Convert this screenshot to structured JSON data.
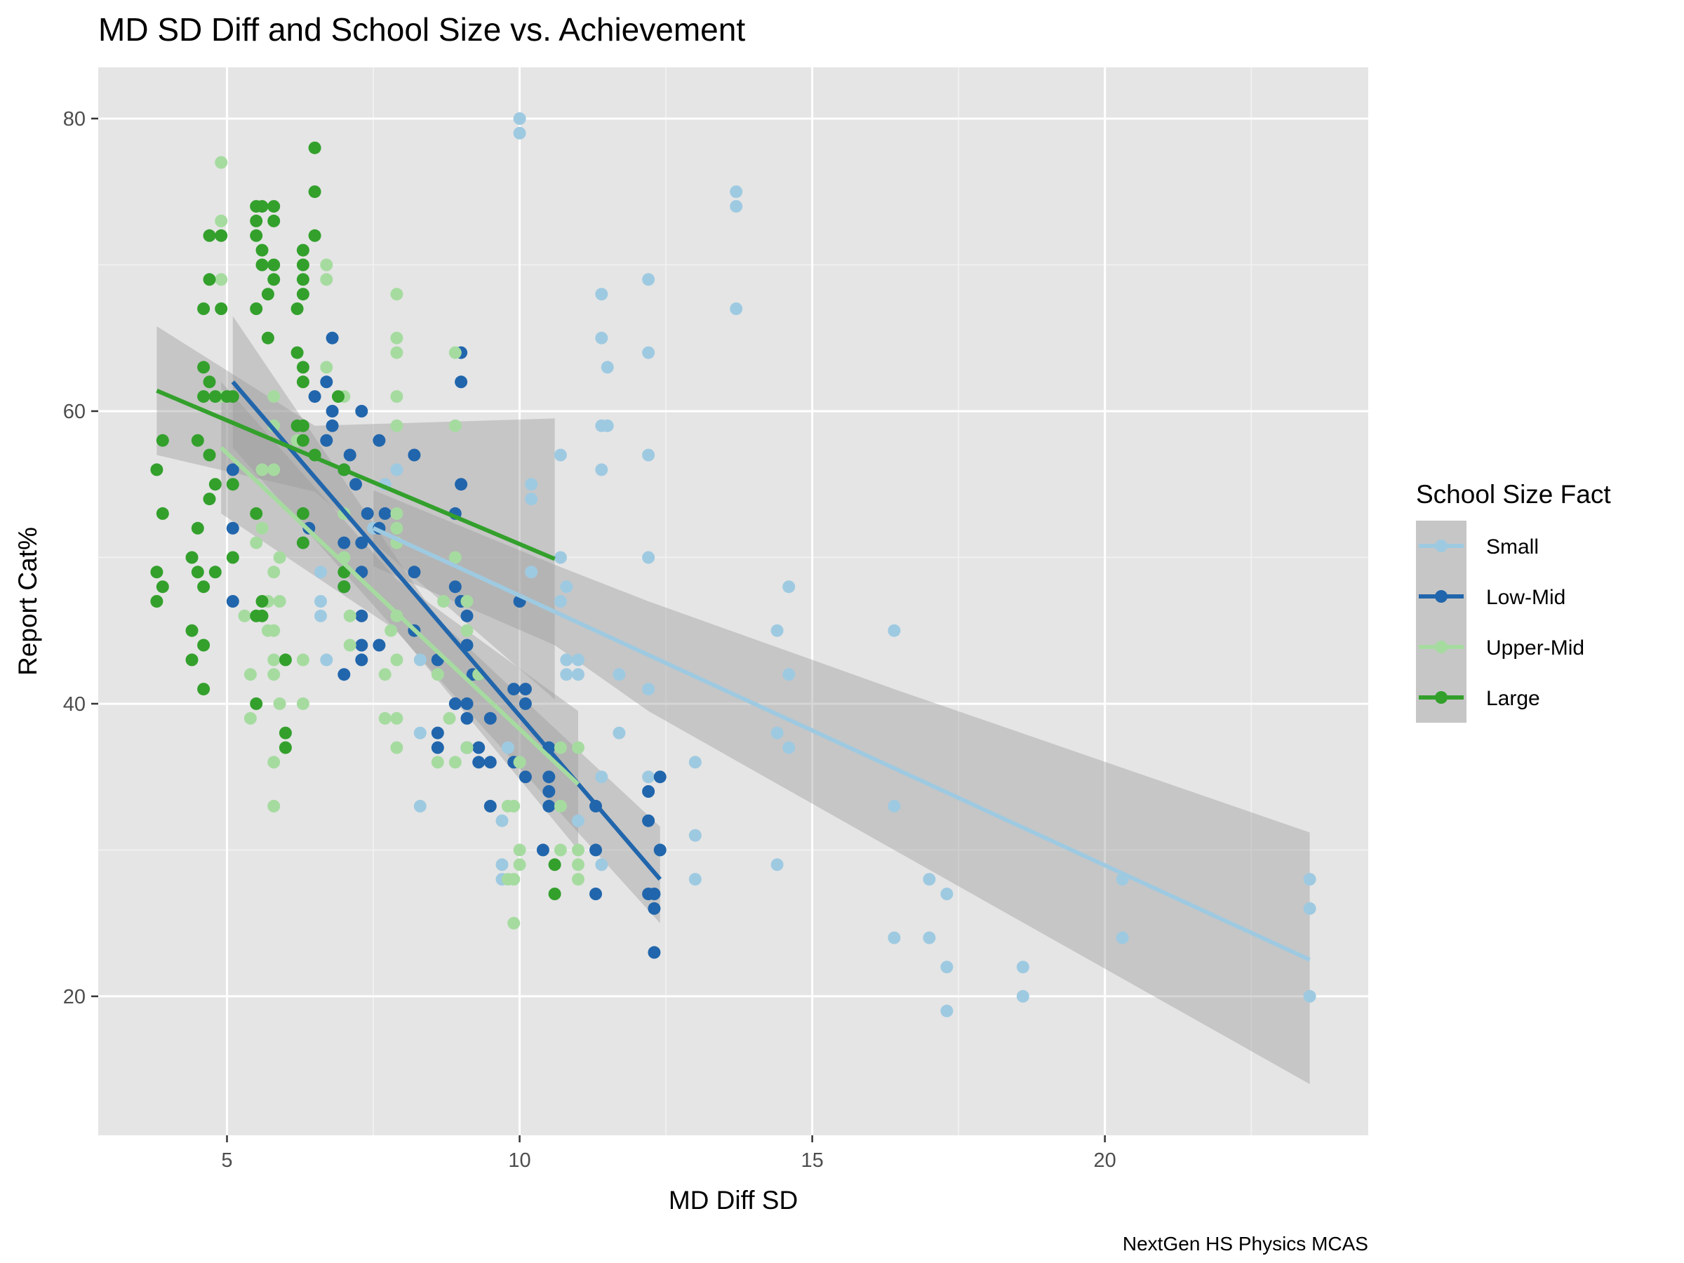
{
  "chart_data": {
    "type": "scatter",
    "title": "MD SD Diff and School Size vs. Achievement",
    "xlabel": "MD Diff SD",
    "ylabel": "Report Cat%",
    "caption": "NextGen HS Physics MCAS",
    "xlim": [
      2.8,
      24.5
    ],
    "ylim": [
      10.5,
      83.5
    ],
    "x_ticks": [
      5,
      10,
      15,
      20
    ],
    "y_ticks": [
      20,
      40,
      60,
      80
    ],
    "grid": true,
    "legend": {
      "title": "School Size Fact",
      "position": "right"
    },
    "series": [
      {
        "name": "Small",
        "color": "#9ecae1",
        "points": [
          [
            10,
            80
          ],
          [
            10,
            79
          ],
          [
            13.7,
            75
          ],
          [
            13.7,
            74
          ],
          [
            13.7,
            67
          ],
          [
            11.4,
            68
          ],
          [
            12.2,
            69
          ],
          [
            12.2,
            64
          ],
          [
            11.4,
            65
          ],
          [
            11.5,
            63
          ],
          [
            11.4,
            59
          ],
          [
            11.5,
            59
          ],
          [
            11.4,
            56
          ],
          [
            10.7,
            57
          ],
          [
            12.2,
            57
          ],
          [
            10.2,
            55
          ],
          [
            10.2,
            54
          ],
          [
            10.7,
            50
          ],
          [
            12.2,
            50
          ],
          [
            10.2,
            49
          ],
          [
            10.8,
            48
          ],
          [
            10.7,
            47
          ],
          [
            10.8,
            43
          ],
          [
            11.0,
            43
          ],
          [
            10.8,
            42
          ],
          [
            11.0,
            42
          ],
          [
            11.7,
            42
          ],
          [
            12.2,
            41
          ],
          [
            11.7,
            38
          ],
          [
            14.6,
            48
          ],
          [
            14.4,
            45
          ],
          [
            14.6,
            42
          ],
          [
            14.4,
            38
          ],
          [
            14.6,
            37
          ],
          [
            16.4,
            45
          ],
          [
            16.4,
            33
          ],
          [
            16.4,
            24
          ],
          [
            17.0,
            28
          ],
          [
            17.0,
            24
          ],
          [
            17.3,
            27
          ],
          [
            17.3,
            22
          ],
          [
            17.3,
            19
          ],
          [
            18.6,
            22
          ],
          [
            18.6,
            20
          ],
          [
            20.3,
            28
          ],
          [
            20.3,
            24
          ],
          [
            23.5,
            28
          ],
          [
            23.5,
            26
          ],
          [
            23.5,
            20
          ],
          [
            13.0,
            36
          ],
          [
            13.0,
            31
          ],
          [
            13.0,
            28
          ],
          [
            12.2,
            35
          ],
          [
            11.4,
            35
          ],
          [
            11.4,
            29
          ],
          [
            11.0,
            32
          ],
          [
            14.4,
            29
          ],
          [
            9.7,
            32
          ],
          [
            9.7,
            29
          ],
          [
            9.7,
            28
          ],
          [
            9.8,
            37
          ],
          [
            8.3,
            38
          ],
          [
            8.3,
            33
          ],
          [
            8.3,
            43
          ],
          [
            7.9,
            56
          ],
          [
            7.5,
            52
          ],
          [
            6.7,
            43
          ],
          [
            6.6,
            47
          ],
          [
            6.6,
            46
          ],
          [
            6.6,
            49
          ],
          [
            7.7,
            55
          ]
        ],
        "fit": {
          "x": [
            7.5,
            23.5
          ],
          "y": [
            52.0,
            22.5
          ],
          "ci_x": [
            7.5,
            10.6,
            12.2,
            16.4,
            23.5
          ],
          "ci_lo": [
            49.4,
            44.0,
            39.5,
            30.0,
            14.0
          ],
          "ci_hi": [
            54.6,
            49.5,
            47.0,
            41.0,
            31.2
          ]
        }
      },
      {
        "name": "Low-Mid",
        "color": "#2166ac",
        "points": [
          [
            6.8,
            65
          ],
          [
            9.0,
            64
          ],
          [
            9.0,
            62
          ],
          [
            6.7,
            62
          ],
          [
            6.5,
            61
          ],
          [
            6.8,
            60
          ],
          [
            7.3,
            60
          ],
          [
            6.8,
            59
          ],
          [
            7.6,
            58
          ],
          [
            6.7,
            58
          ],
          [
            7.1,
            57
          ],
          [
            8.2,
            57
          ],
          [
            5.1,
            56
          ],
          [
            7.0,
            56
          ],
          [
            7.2,
            55
          ],
          [
            9.0,
            55
          ],
          [
            7.4,
            53
          ],
          [
            7.7,
            53
          ],
          [
            8.9,
            53
          ],
          [
            6.4,
            52
          ],
          [
            7.6,
            52
          ],
          [
            5.1,
            52
          ],
          [
            7.0,
            51
          ],
          [
            7.3,
            51
          ],
          [
            8.2,
            49
          ],
          [
            7.3,
            49
          ],
          [
            7.0,
            48
          ],
          [
            8.9,
            48
          ],
          [
            5.1,
            47
          ],
          [
            9.0,
            47
          ],
          [
            10.0,
            47
          ],
          [
            9.1,
            46
          ],
          [
            7.3,
            46
          ],
          [
            8.2,
            45
          ],
          [
            7.3,
            44
          ],
          [
            7.6,
            44
          ],
          [
            9.1,
            44
          ],
          [
            8.6,
            43
          ],
          [
            7.3,
            43
          ],
          [
            9.2,
            42
          ],
          [
            9.3,
            42
          ],
          [
            7.0,
            42
          ],
          [
            10.1,
            41
          ],
          [
            9.9,
            41
          ],
          [
            8.9,
            40
          ],
          [
            9.1,
            40
          ],
          [
            10.1,
            40
          ],
          [
            9.1,
            39
          ],
          [
            9.5,
            39
          ],
          [
            8.6,
            38
          ],
          [
            8.6,
            37
          ],
          [
            9.1,
            37
          ],
          [
            9.3,
            37
          ],
          [
            10.5,
            37
          ],
          [
            9.3,
            36
          ],
          [
            9.5,
            36
          ],
          [
            9.9,
            36
          ],
          [
            10.5,
            35
          ],
          [
            10.1,
            35
          ],
          [
            12.4,
            35
          ],
          [
            10.5,
            34
          ],
          [
            12.2,
            34
          ],
          [
            10.5,
            33
          ],
          [
            9.5,
            33
          ],
          [
            11.3,
            33
          ],
          [
            12.2,
            32
          ],
          [
            10.4,
            30
          ],
          [
            11.3,
            30
          ],
          [
            12.4,
            30
          ],
          [
            12.2,
            27
          ],
          [
            12.3,
            27
          ],
          [
            11.3,
            27
          ],
          [
            12.3,
            26
          ],
          [
            12.3,
            23
          ]
        ],
        "fit": {
          "x": [
            5.1,
            12.4
          ],
          "y": [
            62.0,
            28.0
          ],
          "ci_x": [
            5.1,
            8.6,
            12.4
          ],
          "ci_lo": [
            57.5,
            41.8,
            25.0
          ],
          "ci_hi": [
            66.5,
            45.8,
            31.6
          ]
        }
      },
      {
        "name": "Upper-Mid",
        "color": "#a6dba0",
        "points": [
          [
            4.9,
            77
          ],
          [
            4.9,
            73
          ],
          [
            4.9,
            69
          ],
          [
            6.7,
            70
          ],
          [
            6.7,
            69
          ],
          [
            7.9,
            68
          ],
          [
            7.9,
            65
          ],
          [
            7.9,
            64
          ],
          [
            8.9,
            64
          ],
          [
            6.7,
            63
          ],
          [
            7.0,
            61
          ],
          [
            7.9,
            61
          ],
          [
            5.8,
            61
          ],
          [
            4.9,
            61
          ],
          [
            8.9,
            59
          ],
          [
            5.8,
            59
          ],
          [
            7.9,
            59
          ],
          [
            6.2,
            58
          ],
          [
            5.6,
            56
          ],
          [
            5.8,
            56
          ],
          [
            7.9,
            53
          ],
          [
            7.0,
            53
          ],
          [
            5.5,
            53
          ],
          [
            7.9,
            52
          ],
          [
            5.6,
            52
          ],
          [
            7.9,
            51
          ],
          [
            5.5,
            51
          ],
          [
            7.0,
            50
          ],
          [
            5.9,
            50
          ],
          [
            8.9,
            50
          ],
          [
            5.8,
            49
          ],
          [
            9.1,
            47
          ],
          [
            5.9,
            47
          ],
          [
            5.7,
            47
          ],
          [
            8.7,
            47
          ],
          [
            7.9,
            46
          ],
          [
            5.3,
            46
          ],
          [
            7.1,
            46
          ],
          [
            7.8,
            45
          ],
          [
            5.7,
            45
          ],
          [
            5.8,
            45
          ],
          [
            9.1,
            45
          ],
          [
            7.1,
            44
          ],
          [
            5.8,
            43
          ],
          [
            7.9,
            43
          ],
          [
            6.3,
            43
          ],
          [
            5.4,
            42
          ],
          [
            8.6,
            42
          ],
          [
            7.7,
            42
          ],
          [
            5.8,
            42
          ],
          [
            9.3,
            42
          ],
          [
            5.9,
            40
          ],
          [
            6.3,
            40
          ],
          [
            7.7,
            39
          ],
          [
            7.9,
            39
          ],
          [
            5.4,
            39
          ],
          [
            8.8,
            39
          ],
          [
            7.9,
            37
          ],
          [
            9.1,
            37
          ],
          [
            10.7,
            37
          ],
          [
            11.0,
            37
          ],
          [
            5.8,
            36
          ],
          [
            8.6,
            36
          ],
          [
            8.9,
            36
          ],
          [
            10.0,
            36
          ],
          [
            5.8,
            33
          ],
          [
            9.9,
            33
          ],
          [
            10.7,
            33
          ],
          [
            9.8,
            33
          ],
          [
            10.0,
            30
          ],
          [
            10.7,
            30
          ],
          [
            11.0,
            30
          ],
          [
            10.0,
            29
          ],
          [
            11.0,
            29
          ],
          [
            9.8,
            28
          ],
          [
            11.0,
            28
          ],
          [
            9.9,
            28
          ],
          [
            9.9,
            25
          ]
        ],
        "fit": {
          "x": [
            4.9,
            11.0
          ],
          "y": [
            57.5,
            34.5
          ],
          "ci_x": [
            4.9,
            7.9,
            11.0
          ],
          "ci_lo": [
            53.0,
            45.0,
            30.0
          ],
          "ci_hi": [
            62.0,
            48.5,
            39.5
          ]
        }
      },
      {
        "name": "Large",
        "color": "#33a02c",
        "points": [
          [
            6.5,
            78
          ],
          [
            6.5,
            75
          ],
          [
            5.5,
            74
          ],
          [
            5.6,
            74
          ],
          [
            5.8,
            74
          ],
          [
            5.5,
            73
          ],
          [
            5.8,
            73
          ],
          [
            4.7,
            72
          ],
          [
            4.9,
            72
          ],
          [
            5.5,
            72
          ],
          [
            6.5,
            72
          ],
          [
            5.6,
            71
          ],
          [
            6.3,
            71
          ],
          [
            5.6,
            70
          ],
          [
            5.8,
            70
          ],
          [
            6.3,
            70
          ],
          [
            4.7,
            69
          ],
          [
            5.8,
            69
          ],
          [
            6.3,
            69
          ],
          [
            5.7,
            68
          ],
          [
            6.3,
            68
          ],
          [
            4.6,
            67
          ],
          [
            5.5,
            67
          ],
          [
            4.9,
            67
          ],
          [
            6.2,
            67
          ],
          [
            5.7,
            65
          ],
          [
            6.2,
            64
          ],
          [
            6.3,
            63
          ],
          [
            4.6,
            63
          ],
          [
            4.7,
            62
          ],
          [
            6.3,
            62
          ],
          [
            4.6,
            61
          ],
          [
            4.8,
            61
          ],
          [
            5.0,
            61
          ],
          [
            5.1,
            61
          ],
          [
            6.9,
            61
          ],
          [
            6.2,
            59
          ],
          [
            6.3,
            59
          ],
          [
            3.9,
            58
          ],
          [
            4.5,
            58
          ],
          [
            6.3,
            58
          ],
          [
            4.7,
            57
          ],
          [
            6.5,
            57
          ],
          [
            7.0,
            56
          ],
          [
            3.8,
            56
          ],
          [
            4.8,
            55
          ],
          [
            5.1,
            55
          ],
          [
            4.7,
            54
          ],
          [
            3.9,
            53
          ],
          [
            5.5,
            53
          ],
          [
            6.3,
            53
          ],
          [
            4.5,
            52
          ],
          [
            6.3,
            51
          ],
          [
            4.4,
            50
          ],
          [
            5.1,
            50
          ],
          [
            3.8,
            49
          ],
          [
            4.5,
            49
          ],
          [
            4.8,
            49
          ],
          [
            3.9,
            48
          ],
          [
            4.6,
            48
          ],
          [
            3.8,
            47
          ],
          [
            5.6,
            47
          ],
          [
            5.6,
            46
          ],
          [
            5.5,
            46
          ],
          [
            4.4,
            45
          ],
          [
            4.6,
            44
          ],
          [
            4.4,
            43
          ],
          [
            6.0,
            43
          ],
          [
            4.6,
            41
          ],
          [
            5.5,
            40
          ],
          [
            6.0,
            38
          ],
          [
            6.0,
            37
          ],
          [
            10.6,
            29
          ],
          [
            10.6,
            27
          ],
          [
            7.0,
            49
          ],
          [
            7.0,
            48
          ]
        ],
        "fit": {
          "x": [
            3.8,
            10.6
          ],
          "y": [
            61.4,
            49.9
          ],
          "ci_x": [
            3.8,
            6.5,
            10.6
          ],
          "ci_lo": [
            57.0,
            54.5,
            40.3
          ],
          "ci_hi": [
            65.8,
            59.0,
            59.5
          ]
        }
      }
    ]
  }
}
